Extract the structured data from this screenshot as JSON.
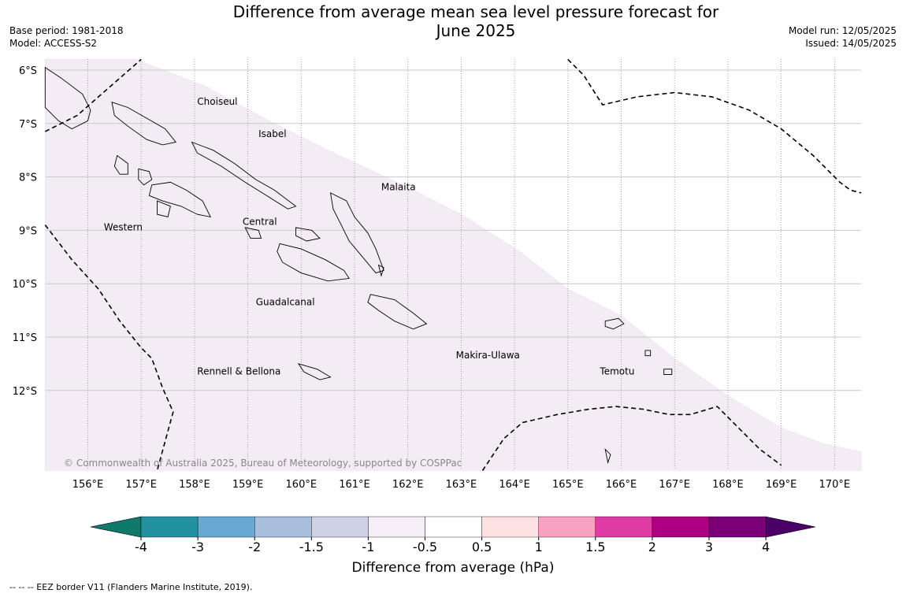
{
  "title_line1": "Difference from average mean sea level pressure forecast for",
  "title_line2": "June 2025",
  "meta_left": [
    "Base period: 1981-2018",
    "Model: ACCESS-S2"
  ],
  "meta_right": [
    "Model run: 12/05/2025",
    "Issued: 14/05/2025"
  ],
  "map": {
    "lon_range": [
      155.2,
      170.5
    ],
    "lat_range": [
      -13.5,
      -5.8
    ],
    "lat_ticks": [
      {
        "value": -6,
        "label": "6°S"
      },
      {
        "value": -7,
        "label": "7°S"
      },
      {
        "value": -8,
        "label": "8°S"
      },
      {
        "value": -9,
        "label": "9°S"
      },
      {
        "value": -10,
        "label": "10°S"
      },
      {
        "value": -11,
        "label": "11°S"
      },
      {
        "value": -12,
        "label": "12°S"
      }
    ],
    "lon_ticks": [
      {
        "value": 156,
        "label": "156°E"
      },
      {
        "value": 157,
        "label": "157°E"
      },
      {
        "value": 158,
        "label": "158°E"
      },
      {
        "value": 159,
        "label": "159°E"
      },
      {
        "value": 160,
        "label": "160°E"
      },
      {
        "value": 161,
        "label": "161°E"
      },
      {
        "value": 162,
        "label": "162°E"
      },
      {
        "value": 163,
        "label": "163°E"
      },
      {
        "value": 164,
        "label": "164°E"
      },
      {
        "value": 165,
        "label": "165°E"
      },
      {
        "value": 166,
        "label": "166°E"
      },
      {
        "value": 167,
        "label": "167°E"
      },
      {
        "value": 168,
        "label": "168°E"
      },
      {
        "value": 169,
        "label": "169°E"
      },
      {
        "value": 170,
        "label": "170°E"
      }
    ],
    "regions": [
      {
        "name": "Choiseul",
        "lon": 158.05,
        "lat": -6.65
      },
      {
        "name": "Isabel",
        "lon": 159.2,
        "lat": -7.25
      },
      {
        "name": "Malaita",
        "lon": 161.5,
        "lat": -8.25
      },
      {
        "name": "Central",
        "lon": 158.9,
        "lat": -8.9
      },
      {
        "name": "Western",
        "lon": 156.3,
        "lat": -9.0
      },
      {
        "name": "Guadalcanal",
        "lon": 159.15,
        "lat": -10.4
      },
      {
        "name": "Makira-Ulawa",
        "lon": 162.9,
        "lat": -11.4
      },
      {
        "name": "Rennell & Bellona",
        "lon": 158.05,
        "lat": -11.7
      },
      {
        "name": "Temotu",
        "lon": 165.6,
        "lat": -11.7
      }
    ],
    "anomaly_fill_color": "#f3ecf5",
    "anomaly_range_hPa": [
      -1,
      -0.5
    ],
    "copyright": "© Commonwealth of Australia 2025, Bureau of Meteorology, supported by COSPPac"
  },
  "colorbar": {
    "colors": [
      "#0f7a6a",
      "#2391a0",
      "#67a9d2",
      "#a8bedd",
      "#cfd1e5",
      "#f5eef7",
      "#ffffff",
      "#fee1e2",
      "#f8a1c0",
      "#de3ba4",
      "#ad0083",
      "#7b0078",
      "#4b0068"
    ],
    "tick_labels": [
      "-4",
      "-3",
      "-2",
      "-1.5",
      "-1",
      "-0.5",
      "0.5",
      "1",
      "1.5",
      "2",
      "3",
      "4"
    ],
    "label": "Difference from average (hPa)"
  },
  "footnote": "--  --  -- EEZ border V11 (Flanders Marine Institute, 2019)."
}
